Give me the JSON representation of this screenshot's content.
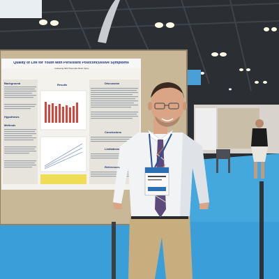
{
  "poster": {
    "title": "Quality of Life for Youth with Persistent Postconcussive Symptoms",
    "subtitle": "Following Mild Traumatic Brain Injury",
    "sections": {
      "background": "Background",
      "hypothesis": "Hypothesis",
      "methods": "Methods",
      "results": "Results",
      "discussion": "Discussion",
      "conclusions": "Conclusions",
      "limitations": "Limitations",
      "references": "References"
    }
  },
  "colors": {
    "ceiling": "#2b2f33",
    "carpet": "#3a9fd8",
    "board": "#c9b897",
    "poster_bg": "#f4f2ec",
    "poster_title": "#1c2f6e",
    "bar_red": "#d9453b",
    "shirt": "#f2f3f5",
    "pants": "#c8ad7f",
    "tie_purple": "#5c4a7a",
    "skin": "#d9a586"
  }
}
